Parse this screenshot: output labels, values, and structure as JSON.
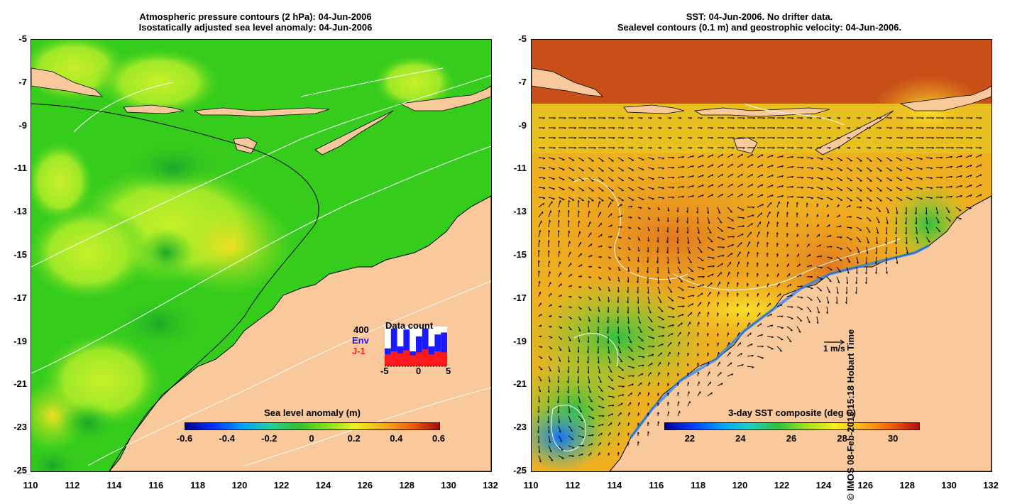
{
  "left": {
    "title_line1": "Atmospheric pressure contours (2 hPa): 04-Jun-2006",
    "title_line2": "Isostatically adjusted sea level anomaly: 04-Jun-2006",
    "colorbar_title": "Sea level anomaly (m)",
    "colorbar_ticks": [
      "-0.6",
      "-0.4",
      "-0.2",
      "0",
      "0.2",
      "0.4",
      "0.6"
    ],
    "inset": {
      "title": "Data count",
      "count_label": "400",
      "env_label": "Env",
      "j1_label": "J-1",
      "x_ticks": [
        "-5",
        "0",
        "5"
      ],
      "env_values": [
        180,
        380,
        200,
        370,
        150,
        300,
        380,
        200,
        320,
        340
      ],
      "j1_values": [
        120,
        150,
        130,
        160,
        110,
        140,
        170,
        120,
        150,
        140
      ],
      "colors": {
        "env": "#1a1aff",
        "j1": "#ff1a1a"
      }
    }
  },
  "right": {
    "title_line1": "SST: 04-Jun-2006. No drifter data.",
    "title_line2": "Sealevel contours (0.1 m) and geostrophic velocity: 04-Jun-2006.",
    "colorbar_title": "3-day SST composite (deg C)",
    "colorbar_ticks": [
      "22",
      "24",
      "26",
      "28",
      "30"
    ],
    "scale_label": "1 m/s"
  },
  "axes": {
    "lat_ticks": [
      "-5",
      "-7",
      "-9",
      "-11",
      "-13",
      "-15",
      "-17",
      "-19",
      "-21",
      "-23",
      "-25"
    ],
    "lon_ticks": [
      "110",
      "112",
      "114",
      "116",
      "118",
      "120",
      "122",
      "124",
      "126",
      "128",
      "130",
      "132"
    ]
  },
  "credit": "© IMOS 08-Feb-2013 15:18 Hobart Time",
  "colors": {
    "land": "#f9c89b",
    "ocean_green": "#35cc1c",
    "sla_yellow": "#b8f020",
    "sst_orange": "#f0a020"
  }
}
